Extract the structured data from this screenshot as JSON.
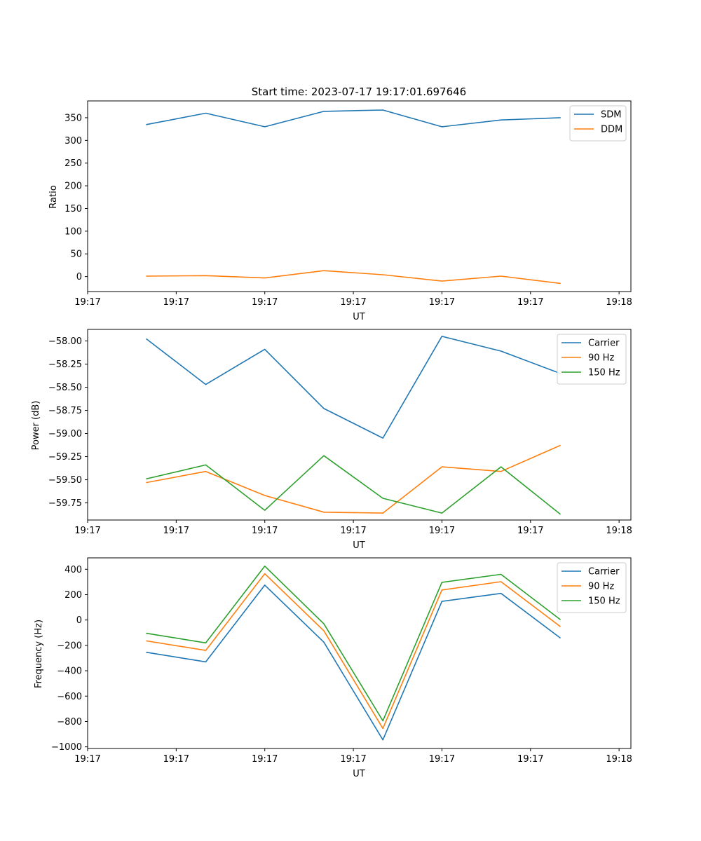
{
  "chart_data": [
    {
      "type": "line",
      "title": "Start time: 2023-07-17 19:17:01.697646",
      "xlabel": "UT",
      "ylabel": "Ratio",
      "xlim": [
        0,
        4.6
      ],
      "ylim": [
        -33,
        387
      ],
      "x": [
        0.5,
        1.0,
        1.5,
        2.0,
        2.5,
        3.0,
        3.5,
        4.0
      ],
      "xticks": [
        0,
        0.75,
        1.5,
        2.25,
        3.0,
        3.75,
        4.5
      ],
      "xtick_labels": [
        "19:17",
        "19:17",
        "19:17",
        "19:17",
        "19:17",
        "19:17",
        "19:18"
      ],
      "yticks": [
        0,
        50,
        100,
        150,
        200,
        250,
        300,
        350
      ],
      "ytick_labels": [
        "0",
        "50",
        "100",
        "150",
        "200",
        "250",
        "300",
        "350"
      ],
      "legend_position": "top-right",
      "series": [
        {
          "name": "SDM",
          "color": "#1f77b4",
          "values": [
            335,
            360,
            330,
            364,
            367,
            330,
            345,
            350
          ]
        },
        {
          "name": "DDM",
          "color": "#ff7f0e",
          "values": [
            1,
            2,
            -3,
            13,
            4,
            -10,
            1,
            -15
          ]
        }
      ]
    },
    {
      "type": "line",
      "title": "",
      "xlabel": "UT",
      "ylabel": "Power (dB)",
      "xlim": [
        0,
        4.6
      ],
      "ylim": [
        -59.935,
        -57.875
      ],
      "x": [
        0.5,
        1.0,
        1.5,
        2.0,
        2.5,
        3.0,
        3.5,
        4.0
      ],
      "xticks": [
        0,
        0.75,
        1.5,
        2.25,
        3.0,
        3.75,
        4.5
      ],
      "xtick_labels": [
        "19:17",
        "19:17",
        "19:17",
        "19:17",
        "19:17",
        "19:17",
        "19:18"
      ],
      "yticks": [
        -59.75,
        -59.5,
        -59.25,
        -59.0,
        -58.75,
        -58.5,
        -58.25,
        -58.0
      ],
      "ytick_labels": [
        "−59.75",
        "−59.50",
        "−59.25",
        "−59.00",
        "−58.75",
        "−58.50",
        "−58.25",
        "−58.00"
      ],
      "legend_position": "top-right",
      "series": [
        {
          "name": "Carrier",
          "color": "#1f77b4",
          "values": [
            -57.98,
            -58.47,
            -58.09,
            -58.73,
            -59.05,
            -57.95,
            -58.11,
            -58.35
          ]
        },
        {
          "name": "90 Hz",
          "color": "#ff7f0e",
          "values": [
            -59.53,
            -59.41,
            -59.67,
            -59.85,
            -59.86,
            -59.36,
            -59.41,
            -59.13
          ]
        },
        {
          "name": "150 Hz",
          "color": "#2ca02c",
          "values": [
            -59.49,
            -59.34,
            -59.83,
            -59.24,
            -59.7,
            -59.86,
            -59.36,
            -59.87
          ]
        }
      ]
    },
    {
      "type": "line",
      "title": "",
      "xlabel": "UT",
      "ylabel": "Frequency (Hz)",
      "xlim": [
        0,
        4.6
      ],
      "ylim": [
        -1013,
        490
      ],
      "x": [
        0.5,
        1.0,
        1.5,
        2.0,
        2.5,
        3.0,
        3.5,
        4.0
      ],
      "xticks": [
        0,
        0.75,
        1.5,
        2.25,
        3.0,
        3.75,
        4.5
      ],
      "xtick_labels": [
        "19:17",
        "19:17",
        "19:17",
        "19:17",
        "19:17",
        "19:17",
        "19:18"
      ],
      "yticks": [
        -1000,
        -800,
        -600,
        -400,
        -200,
        0,
        200,
        400
      ],
      "ytick_labels": [
        "−1000",
        "−800",
        "−600",
        "−400",
        "−200",
        "0",
        "200",
        "400"
      ],
      "legend_position": "top-right",
      "series": [
        {
          "name": "Carrier",
          "color": "#1f77b4",
          "values": [
            -255,
            -330,
            275,
            -175,
            -945,
            147,
            210,
            -140
          ]
        },
        {
          "name": "90 Hz",
          "color": "#ff7f0e",
          "values": [
            -165,
            -240,
            365,
            -85,
            -855,
            237,
            302,
            -50
          ]
        },
        {
          "name": "150 Hz",
          "color": "#2ca02c",
          "values": [
            -105,
            -180,
            425,
            -30,
            -795,
            297,
            360,
            5
          ]
        }
      ]
    }
  ]
}
